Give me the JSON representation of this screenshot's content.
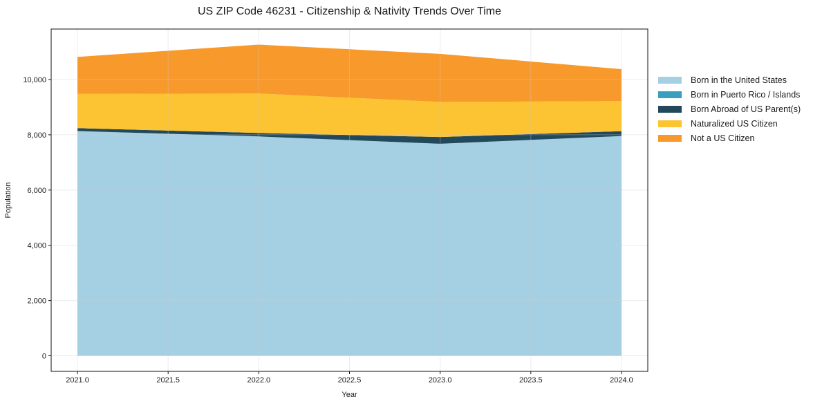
{
  "title": "US ZIP Code 46231 - Citizenship & Nativity Trends Over Time",
  "chart_data": {
    "type": "area",
    "stacked": true,
    "title": "US ZIP Code 46231 - Citizenship & Nativity Trends Over Time",
    "xlabel": "Year",
    "ylabel": "Population",
    "x": [
      2021,
      2022,
      2023,
      2024
    ],
    "series": [
      {
        "name": "Born in the United States",
        "color": "#a5cfe3",
        "values": [
          8135,
          7940,
          7675,
          7955
        ]
      },
      {
        "name": "Born in Puerto Rico / Islands",
        "color": "#3a9fbf",
        "values": [
          0,
          0,
          0,
          0
        ]
      },
      {
        "name": "Born Abroad of US Parent(s)",
        "color": "#22485c",
        "values": [
          105,
          125,
          245,
          175
        ]
      },
      {
        "name": "Naturalized US Citizen",
        "color": "#fcc332",
        "values": [
          1240,
          1430,
          1270,
          1090
        ]
      },
      {
        "name": "Not a US Citizen",
        "color": "#f8992c",
        "values": [
          1340,
          1770,
          1740,
          1155
        ]
      }
    ],
    "totals": [
      10820,
      11265,
      10930,
      10375
    ],
    "xlim": [
      2020.855,
      2024.145
    ],
    "ylim": [
      -563,
      11828
    ],
    "xticks": [
      2021.0,
      2021.5,
      2022.0,
      2022.5,
      2023.0,
      2023.5,
      2024.0
    ],
    "yticks": [
      0,
      2000,
      4000,
      6000,
      8000,
      10000
    ],
    "grid": true,
    "legend_position": "right",
    "colors": {
      "spine": "#111111",
      "grid": "#cccccc",
      "text": "#1a1a1a",
      "background": "#ffffff"
    }
  }
}
